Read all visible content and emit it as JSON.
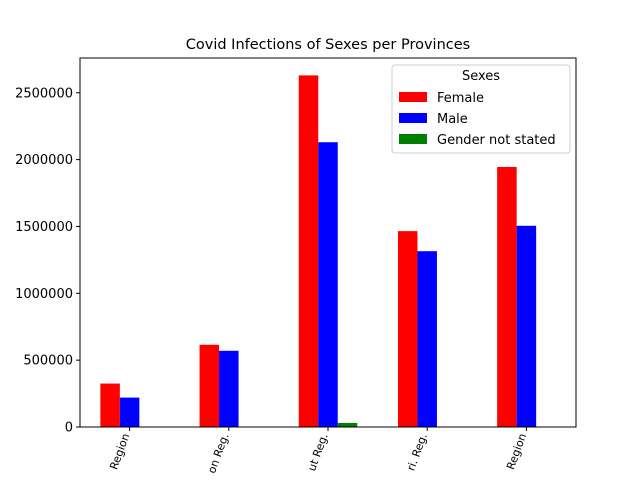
{
  "chart_data": {
    "type": "bar",
    "title": "Covid Infections of Sexes per Provinces",
    "xlabel": "",
    "ylabel": "",
    "categories": [
      "Region",
      "on Reg.",
      "ut Reg.",
      "ri. Reg.",
      "Region"
    ],
    "series": [
      {
        "name": "Female",
        "color": "#ff0000",
        "values": [
          325000,
          615000,
          2630000,
          1465000,
          1945000
        ]
      },
      {
        "name": "Male",
        "color": "#0000ff",
        "values": [
          220000,
          570000,
          2130000,
          1315000,
          1505000
        ]
      },
      {
        "name": "Gender not stated",
        "color": "#008000",
        "values": [
          0,
          0,
          30000,
          0,
          0
        ]
      }
    ],
    "ylim": [
      0,
      2760000
    ],
    "yticks": [
      0,
      500000,
      1000000,
      1500000,
      2000000,
      2500000
    ],
    "ytick_labels": [
      "0",
      "500000",
      "1000000",
      "1500000",
      "2000000",
      "2500000"
    ],
    "legend": {
      "title": "Sexes",
      "placement": "top-right"
    },
    "grid": false
  }
}
